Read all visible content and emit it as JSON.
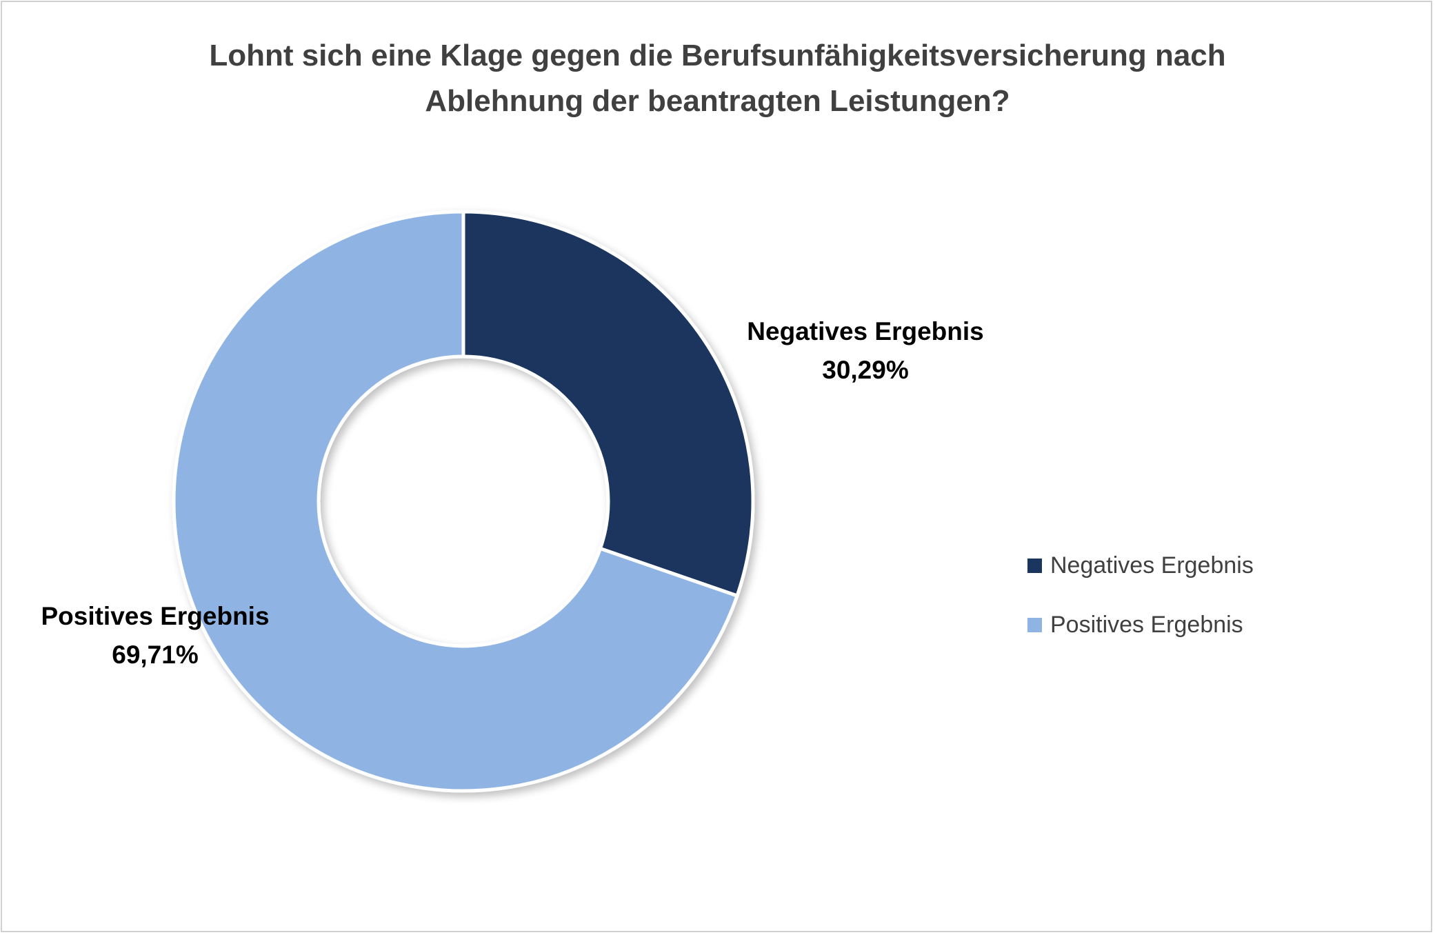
{
  "chart_data": {
    "type": "pie",
    "variant": "donut",
    "title_lines": [
      "Lohnt sich eine Klage gegen die Berufsunfähigkeitsversicherung nach",
      "Ablehnung der beantragten Leistungen?"
    ],
    "categories": [
      "Negatives Ergebnis",
      "Positives Ergebnis"
    ],
    "values": [
      30.29,
      69.71
    ],
    "value_labels": [
      "30,29%",
      "69,71%"
    ],
    "colors": [
      "#1a365e",
      "#8fb4e3"
    ],
    "start_angle": "top, clockwise",
    "legend_position": "right"
  }
}
